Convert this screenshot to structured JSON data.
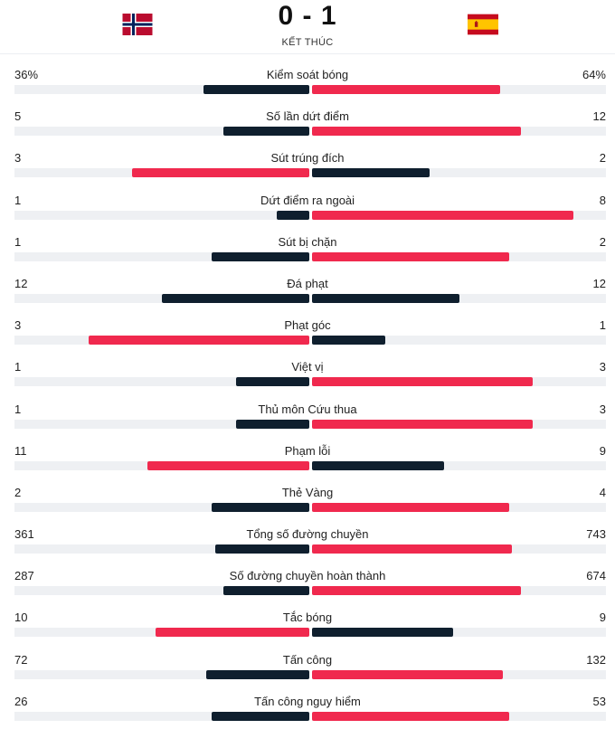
{
  "match": {
    "score": "0 - 1",
    "status": "KẾT THÚC",
    "home_team_flag": "norway-flag",
    "away_team_flag": "spain-flag"
  },
  "colors": {
    "winner_bar": "#f0294e",
    "loser_bar": "#0f1f2e",
    "track": "#eef0f3"
  },
  "stats": [
    {
      "label": "Kiểm soát bóng",
      "home": "36%",
      "away": "64%",
      "home_frac": 0.36,
      "away_frac": 0.64,
      "leader": "away"
    },
    {
      "label": "Số lần dứt điểm",
      "home": "5",
      "away": "12",
      "home_frac": 0.29,
      "away_frac": 0.71,
      "leader": "away"
    },
    {
      "label": "Sút trúng đích",
      "home": "3",
      "away": "2",
      "home_frac": 0.6,
      "away_frac": 0.4,
      "leader": "home"
    },
    {
      "label": "Dứt điểm ra ngoài",
      "home": "1",
      "away": "8",
      "home_frac": 0.11,
      "away_frac": 0.89,
      "leader": "away"
    },
    {
      "label": "Sút bị chặn",
      "home": "1",
      "away": "2",
      "home_frac": 0.33,
      "away_frac": 0.67,
      "leader": "away"
    },
    {
      "label": "Đá phạt",
      "home": "12",
      "away": "12",
      "home_frac": 0.5,
      "away_frac": 0.5,
      "leader": "none"
    },
    {
      "label": "Phạt góc",
      "home": "3",
      "away": "1",
      "home_frac": 0.75,
      "away_frac": 0.25,
      "leader": "home"
    },
    {
      "label": "Việt vị",
      "home": "1",
      "away": "3",
      "home_frac": 0.25,
      "away_frac": 0.75,
      "leader": "away"
    },
    {
      "label": "Thủ môn Cứu thua",
      "home": "1",
      "away": "3",
      "home_frac": 0.25,
      "away_frac": 0.75,
      "leader": "away"
    },
    {
      "label": "Phạm lỗi",
      "home": "11",
      "away": "9",
      "home_frac": 0.55,
      "away_frac": 0.45,
      "leader": "home"
    },
    {
      "label": "Thẻ Vàng",
      "home": "2",
      "away": "4",
      "home_frac": 0.33,
      "away_frac": 0.67,
      "leader": "away"
    },
    {
      "label": "Tổng số đường chuyền",
      "home": "361",
      "away": "743",
      "home_frac": 0.32,
      "away_frac": 0.68,
      "leader": "away"
    },
    {
      "label": "Số đường chuyền hoàn thành",
      "home": "287",
      "away": "674",
      "home_frac": 0.29,
      "away_frac": 0.71,
      "leader": "away"
    },
    {
      "label": "Tắc bóng",
      "home": "10",
      "away": "9",
      "home_frac": 0.52,
      "away_frac": 0.48,
      "leader": "home"
    },
    {
      "label": "Tấn công",
      "home": "72",
      "away": "132",
      "home_frac": 0.35,
      "away_frac": 0.65,
      "leader": "away"
    },
    {
      "label": "Tấn công nguy hiểm",
      "home": "26",
      "away": "53",
      "home_frac": 0.33,
      "away_frac": 0.67,
      "leader": "away"
    }
  ]
}
